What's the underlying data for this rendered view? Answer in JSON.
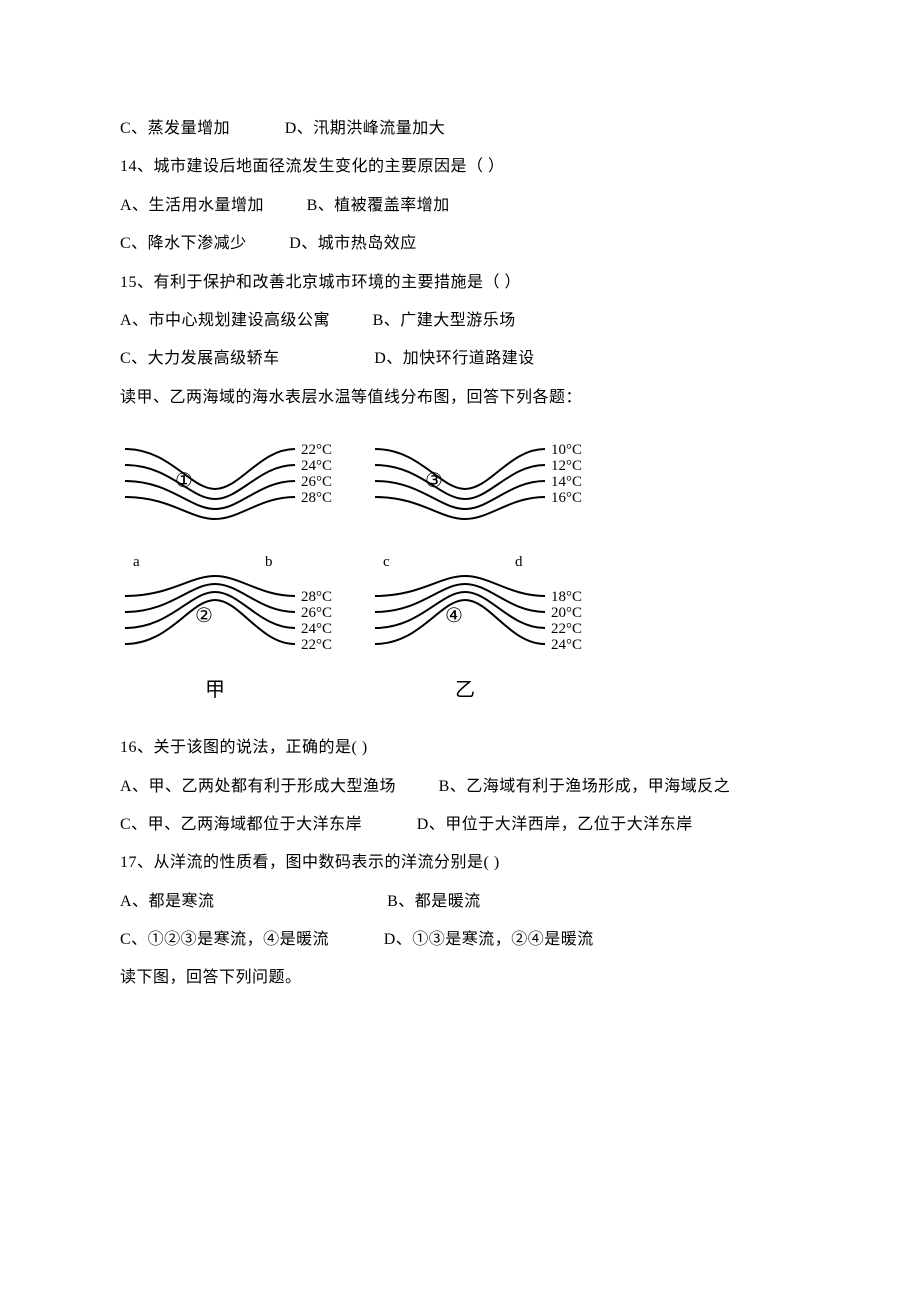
{
  "q13_opts": {
    "C": "C、蒸发量增加",
    "D": "D、汛期洪峰流量加大"
  },
  "q14": {
    "stem": "14、城市建设后地面径流发生变化的主要原因是（    ）",
    "A": "A、生活用水量增加",
    "B": "B、植被覆盖率增加",
    "C": "C、降水下渗减少",
    "D": "D、城市热岛效应"
  },
  "q15": {
    "stem": "15、有利于保护和改善北京城市环境的主要措施是（    ）",
    "A": "A、市中心规划建设高级公寓",
    "B": "B、广建大型游乐场",
    "C": "C、大力发展高级轿车",
    "D": "D、加快环行道路建设"
  },
  "passage1": "读甲、乙两海域的海水表层水温等值线分布图，回答下列各题：",
  "chart": {
    "left": {
      "upper_labels": [
        "22°C",
        "24°C",
        "26°C",
        "28°C"
      ],
      "lower_labels": [
        "28°C",
        "26°C",
        "24°C",
        "22°C"
      ],
      "region_left": "a",
      "region_right": "b",
      "circle_upper": "①",
      "circle_lower": "②",
      "caption": "甲",
      "line_color": "#000000"
    },
    "right": {
      "upper_labels": [
        "10°C",
        "12°C",
        "14°C",
        "16°C"
      ],
      "lower_labels": [
        "18°C",
        "20°C",
        "22°C",
        "24°C"
      ],
      "region_left": "c",
      "region_right": "d",
      "circle_upper": "③",
      "circle_lower": "④",
      "caption": "乙",
      "line_color": "#000000"
    },
    "line_width": 2
  },
  "q16": {
    "stem": "16、关于该图的说法，正确的是(      )",
    "A": "A、甲、乙两处都有利于形成大型渔场",
    "B": "B、乙海域有利于渔场形成，甲海域反之",
    "C": "C、甲、乙两海域都位于大洋东岸",
    "D": "D、甲位于大洋西岸，乙位于大洋东岸"
  },
  "q17": {
    "stem": "17、从洋流的性质看，图中数码表示的洋流分别是(      )",
    "A": "A、都是寒流",
    "B": "B、都是暖流",
    "C": "C、①②③是寒流，④是暖流",
    "D": "D、①③是寒流，②④是暖流"
  },
  "passage2": "读下图，回答下列问题。"
}
